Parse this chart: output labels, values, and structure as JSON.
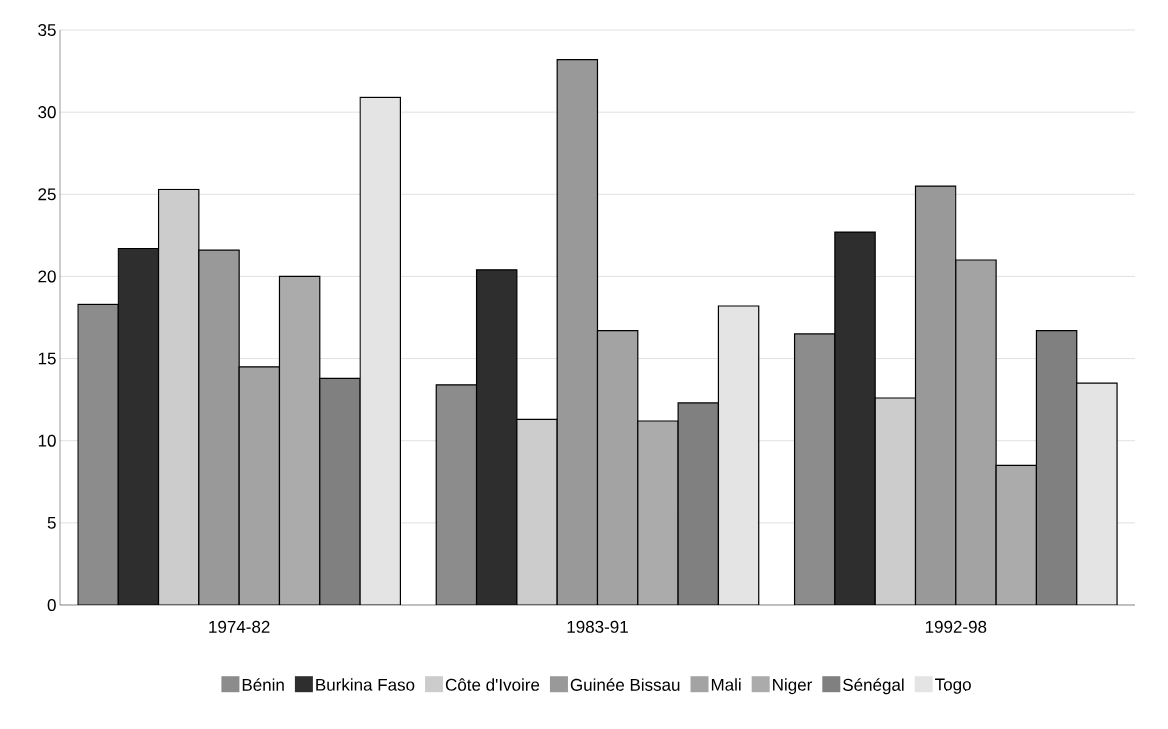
{
  "chart_data": {
    "type": "bar",
    "categories": [
      "1974-82",
      "1983-91",
      "1992-98"
    ],
    "series": [
      {
        "name": "Bénin",
        "color": "#8c8c8c",
        "values": [
          18.3,
          13.4,
          16.5
        ]
      },
      {
        "name": "Burkina Faso",
        "color": "#2e2e2e",
        "values": [
          21.7,
          20.4,
          22.7
        ]
      },
      {
        "name": "Côte d'Ivoire",
        "color": "#cccccc",
        "values": [
          25.3,
          11.3,
          12.6
        ]
      },
      {
        "name": "Guinée Bissau",
        "color": "#999999",
        "values": [
          21.6,
          33.2,
          25.5
        ]
      },
      {
        "name": "Mali",
        "color": "#a3a3a3",
        "values": [
          14.5,
          16.7,
          21.0
        ]
      },
      {
        "name": "Niger",
        "color": "#ababab",
        "values": [
          20.0,
          11.2,
          8.5
        ]
      },
      {
        "name": "Sénégal",
        "color": "#808080",
        "values": [
          13.8,
          12.3,
          16.7
        ]
      },
      {
        "name": "Togo",
        "color": "#e4e4e4",
        "values": [
          30.9,
          18.2,
          13.5
        ]
      }
    ],
    "ylim": [
      0,
      35
    ],
    "yticks": [
      0,
      5,
      10,
      15,
      20,
      25,
      30,
      35
    ],
    "grid": "y",
    "legend": "bottom"
  }
}
